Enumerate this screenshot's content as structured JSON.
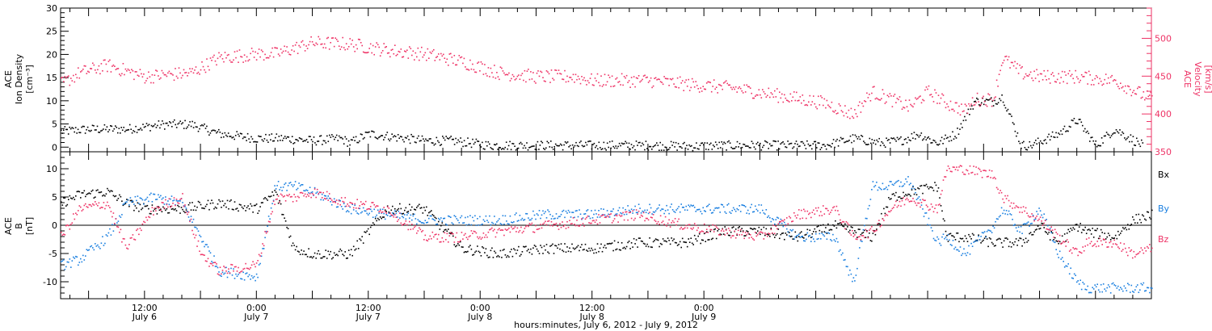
{
  "colors": {
    "density": "#000000",
    "velocity": "#ee3366",
    "bx": "#000000",
    "by": "#1a7fe0",
    "bz": "#ee3366",
    "axis": "#000000"
  },
  "chart_data": [
    {
      "type": "scatter",
      "panel": "top",
      "x_unit": "hours since July 6, 2012 00:00 UTC",
      "xlim": [
        3,
        120
      ],
      "left_axis": {
        "label_lines": [
          "ACE",
          "Ion Density",
          "[cm⁻³]"
        ],
        "ylim": [
          -1,
          30
        ],
        "ticks": [
          0,
          5,
          10,
          15,
          20,
          25,
          30
        ]
      },
      "right_axis": {
        "label_lines": [
          "ACE",
          "Velocity",
          "[km/s]"
        ],
        "ylim": [
          350,
          540
        ],
        "ticks": [
          350,
          400,
          450,
          500
        ]
      },
      "series": [
        {
          "key": "density",
          "axis": "left",
          "x": [
            3,
            6,
            10,
            14,
            17,
            20,
            24,
            27,
            30,
            33,
            34,
            36,
            38,
            42,
            45,
            49,
            52,
            56,
            60,
            63,
            66,
            70,
            75,
            80,
            85,
            88,
            91,
            93,
            95,
            97,
            99,
            101,
            103,
            104,
            106,
            107,
            110,
            112,
            114,
            116,
            119
          ],
          "y": [
            3.5,
            4,
            4,
            5,
            5,
            3,
            2,
            2,
            1.5,
            2,
            1,
            3,
            2.5,
            1.5,
            1.5,
            0.5,
            0.5,
            0.5,
            0.5,
            0.5,
            0.5,
            0.3,
            0.5,
            0.5,
            0.5,
            2,
            1,
            1.5,
            3,
            1,
            3,
            10,
            10,
            11,
            0.5,
            0.5,
            3,
            6,
            0.5,
            4,
            0.5
          ]
        },
        {
          "key": "velocity",
          "axis": "right",
          "x": [
            3,
            5,
            8,
            12,
            17,
            20,
            24,
            26,
            30,
            34,
            38,
            42,
            46,
            50,
            54,
            58,
            60,
            66,
            70,
            75,
            80,
            85,
            88,
            90,
            92,
            94,
            96,
            98,
            100,
            101,
            103,
            104,
            106,
            108,
            112,
            116,
            120
          ],
          "y": [
            440,
            455,
            465,
            450,
            455,
            475,
            480,
            480,
            495,
            493,
            485,
            480,
            470,
            455,
            450,
            450,
            445,
            445,
            440,
            435,
            425,
            415,
            400,
            430,
            420,
            410,
            430,
            415,
            405,
            420,
            420,
            475,
            455,
            450,
            450,
            445,
            420
          ]
        }
      ]
    },
    {
      "type": "scatter",
      "panel": "bottom",
      "x_unit": "hours since July 6, 2012 00:00 UTC",
      "xlim": [
        3,
        120
      ],
      "left_axis": {
        "label_lines": [
          "ACE",
          "B",
          "[nT]"
        ],
        "ylim": [
          -13,
          13
        ],
        "ticks": [
          -10,
          -5,
          0,
          5,
          10
        ]
      },
      "zero_line": true,
      "x_tick_labels": [
        {
          "x": 12,
          "lines": [
            "12:00",
            "July 6"
          ]
        },
        {
          "x": 24,
          "lines": [
            "0:00",
            "July 7"
          ]
        },
        {
          "x": 36,
          "lines": [
            "12:00",
            "July 7"
          ]
        },
        {
          "x": 48,
          "lines": [
            "0:00",
            "July 8"
          ]
        },
        {
          "x": 60,
          "lines": [
            "12:00",
            "July 8"
          ]
        },
        {
          "x": 72,
          "lines": [
            "0:00",
            "July 9"
          ]
        }
      ],
      "xlabel": "hours:minutes, July  6, 2012 - July  9, 2012",
      "legend": [
        {
          "key": "bx",
          "text": "Bx"
        },
        {
          "key": "by",
          "text": "By"
        },
        {
          "key": "bz",
          "text": "Bz"
        }
      ],
      "series": [
        {
          "key": "bx",
          "x": [
            3,
            5,
            8,
            10,
            12,
            16,
            20,
            24,
            26,
            28,
            30,
            34,
            38,
            42,
            46,
            50,
            55,
            60,
            65,
            70,
            74,
            78,
            82,
            86,
            88,
            90,
            92,
            94,
            97,
            98,
            100,
            103,
            104,
            106,
            108,
            110,
            112,
            113,
            116,
            118,
            120
          ],
          "y": [
            4,
            5.5,
            6,
            4,
            3,
            3,
            4,
            3,
            6,
            -4,
            -5,
            -5,
            3,
            3,
            -4,
            -5,
            -4,
            -4,
            -3,
            -3,
            -1,
            -1,
            -2,
            0,
            -1,
            -2,
            5,
            6,
            7,
            -2,
            -2,
            -3,
            -3,
            -3,
            0,
            -3,
            0,
            -1,
            -2,
            1,
            2
          ]
        },
        {
          "key": "by",
          "x": [
            3,
            5,
            8,
            10,
            13,
            16,
            20,
            24,
            26,
            28,
            30,
            34,
            38,
            42,
            46,
            50,
            55,
            60,
            65,
            70,
            74,
            78,
            82,
            86,
            88,
            90,
            92,
            94,
            97,
            98,
            100,
            103,
            104,
            106,
            108,
            110,
            112,
            113,
            116,
            118,
            120
          ],
          "y": [
            -7,
            -6,
            -2,
            4,
            5,
            4,
            -8,
            -9,
            7,
            7,
            6,
            3,
            2,
            1,
            1,
            1,
            2,
            2,
            3,
            3,
            3,
            3,
            -2,
            -2,
            -10,
            7,
            7,
            8,
            -3,
            -2,
            -5,
            0,
            3,
            -1,
            3,
            -5,
            -10,
            -11,
            -11,
            -11,
            -11
          ]
        },
        {
          "key": "bz",
          "x": [
            3,
            5,
            8,
            10,
            13,
            16,
            18,
            20,
            24,
            26,
            28,
            30,
            34,
            38,
            42,
            46,
            50,
            55,
            60,
            65,
            70,
            74,
            78,
            82,
            86,
            88,
            90,
            92,
            94,
            97,
            98,
            100,
            103,
            104,
            106,
            108,
            110,
            112,
            113,
            116,
            118,
            120
          ],
          "y": [
            -2,
            3,
            4,
            -4,
            3,
            5,
            -5,
            -8,
            -7,
            5,
            5,
            6,
            4,
            3,
            -2,
            -2,
            -1,
            0,
            1,
            2,
            0,
            -1,
            -2,
            2,
            3,
            -2,
            -1,
            3,
            5,
            3,
            10,
            10,
            9,
            5,
            3,
            1,
            -2,
            -5,
            -3,
            -3,
            -5,
            -4
          ]
        }
      ]
    }
  ]
}
